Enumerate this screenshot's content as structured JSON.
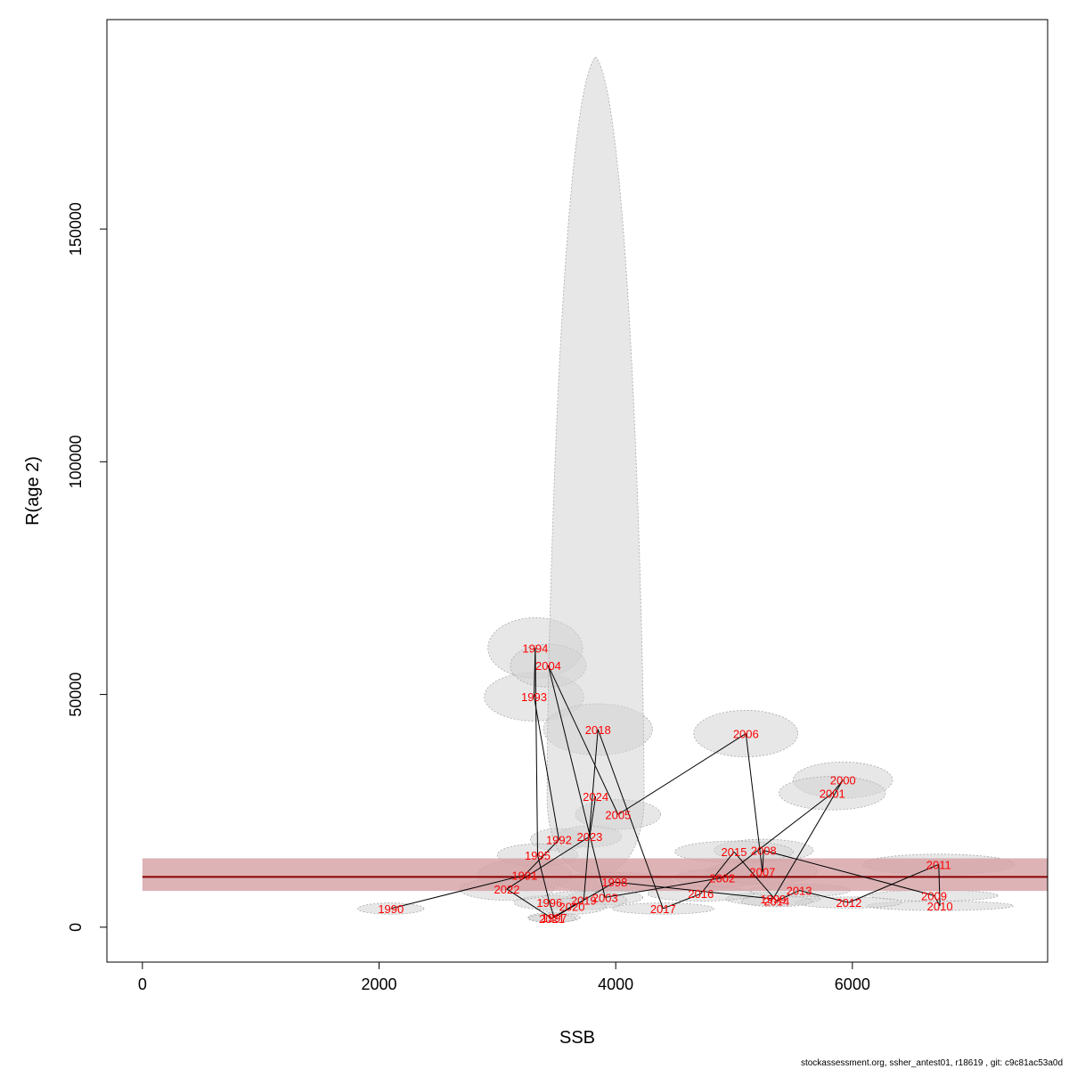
{
  "chart_data": {
    "type": "scatter",
    "title": "",
    "xlabel": "SSB",
    "ylabel": "R(age 2)",
    "xlim": [
      -300,
      7650
    ],
    "ylim": [
      -7500,
      195000
    ],
    "x_ticks": [
      0,
      2000,
      4000,
      6000
    ],
    "y_ticks": [
      0,
      50000,
      100000,
      150000
    ],
    "grid": false,
    "legend": "none",
    "colors": {
      "label": "#ff0000",
      "path": "#000000",
      "ellipse_fill": "#d3d3d3",
      "ellipse_stroke": "#a9a9a9",
      "reference_line": "#8b0000",
      "reference_band": "#d4a0a4"
    },
    "reference_line": {
      "y": 10800,
      "band": [
        7800,
        14800
      ],
      "x_from": 0
    },
    "points": [
      {
        "year": "1990",
        "ssb": 2100,
        "r": 4000,
        "sd_ssb": 280,
        "sd_r": 1200
      },
      {
        "year": "1991",
        "ssb": 3230,
        "r": 11200,
        "sd_ssb": 400,
        "sd_r": 3400
      },
      {
        "year": "1992",
        "ssb": 3520,
        "r": 18800,
        "sd_ssb": 240,
        "sd_r": 2400
      },
      {
        "year": "1993",
        "ssb": 3310,
        "r": 49500,
        "sd_ssb": 420,
        "sd_r": 5200
      },
      {
        "year": "1994",
        "ssb": 3320,
        "r": 60000,
        "sd_ssb": 400,
        "sd_r": 6500
      },
      {
        "year": "1995",
        "ssb": 3340,
        "r": 15500,
        "sd_ssb": 340,
        "sd_r": 2400
      },
      {
        "year": "1996",
        "ssb": 3440,
        "r": 5300,
        "sd_ssb": 300,
        "sd_r": 1500
      },
      {
        "year": "1997",
        "ssb": 3480,
        "r": 2100,
        "sd_ssb": 220,
        "sd_r": 1000
      },
      {
        "year": "1998",
        "ssb": 3990,
        "r": 9700,
        "sd_ssb": 500,
        "sd_r": 2100
      },
      {
        "year": "1999",
        "ssb": 5330,
        "r": 6100,
        "sd_ssb": 400,
        "sd_r": 1400
      },
      {
        "year": "2000",
        "ssb": 5920,
        "r": 31600,
        "sd_ssb": 420,
        "sd_r": 3900
      },
      {
        "year": "2001",
        "ssb": 5830,
        "r": 28800,
        "sd_ssb": 450,
        "sd_r": 3600
      },
      {
        "year": "2002",
        "ssb": 4900,
        "r": 10600,
        "sd_ssb": 400,
        "sd_r": 2000
      },
      {
        "year": "2003",
        "ssb": 3910,
        "r": 6400,
        "sd_ssb": 320,
        "sd_r": 1600
      },
      {
        "year": "2004",
        "ssb": 3430,
        "r": 56200,
        "sd_ssb": 320,
        "sd_r": 4600
      },
      {
        "year": "2005",
        "ssb": 4020,
        "r": 24200,
        "sd_ssb": 360,
        "sd_r": 3200
      },
      {
        "year": "2006",
        "ssb": 5100,
        "r": 41600,
        "sd_ssb": 440,
        "sd_r": 5000
      },
      {
        "year": "2007",
        "ssb": 5240,
        "r": 11900,
        "sd_ssb": 470,
        "sd_r": 2600
      },
      {
        "year": "2008",
        "ssb": 5250,
        "r": 16500,
        "sd_ssb": 420,
        "sd_r": 2400
      },
      {
        "year": "2009",
        "ssb": 6690,
        "r": 6800,
        "sd_ssb": 540,
        "sd_r": 1200
      },
      {
        "year": "2010",
        "ssb": 6740,
        "r": 4600,
        "sd_ssb": 620,
        "sd_r": 1000
      },
      {
        "year": "2011",
        "ssb": 6730,
        "r": 13500,
        "sd_ssb": 640,
        "sd_r": 2200
      },
      {
        "year": "2012",
        "ssb": 5970,
        "r": 5300,
        "sd_ssb": 450,
        "sd_r": 1200
      },
      {
        "year": "2013",
        "ssb": 5550,
        "r": 7900,
        "sd_ssb": 430,
        "sd_r": 1400
      },
      {
        "year": "2014",
        "ssb": 5360,
        "r": 5600,
        "sd_ssb": 300,
        "sd_r": 1200
      },
      {
        "year": "2015",
        "ssb": 5000,
        "r": 16200,
        "sd_ssb": 500,
        "sd_r": 2300
      },
      {
        "year": "2016",
        "ssb": 4720,
        "r": 7200,
        "sd_ssb": 450,
        "sd_r": 1600
      },
      {
        "year": "2017",
        "ssb": 4400,
        "r": 4000,
        "sd_ssb": 430,
        "sd_r": 1200
      },
      {
        "year": "2018",
        "ssb": 3850,
        "r": 42500,
        "sd_ssb": 460,
        "sd_r": 5500
      },
      {
        "year": "2019",
        "ssb": 3730,
        "r": 5800,
        "sd_ssb": 360,
        "sd_r": 2000
      },
      {
        "year": "2020",
        "ssb": 3630,
        "r": 4500,
        "sd_ssb": 290,
        "sd_r": 1700
      },
      {
        "year": "2021",
        "ssb": 3460,
        "r": 1900,
        "sd_ssb": 200,
        "sd_r": 900
      },
      {
        "year": "2022",
        "ssb": 3080,
        "r": 8200,
        "sd_ssb": 400,
        "sd_r": 2400
      },
      {
        "year": "2023",
        "ssb": 3780,
        "r": 19500,
        "sd_ssb": 270,
        "sd_r": 2300
      },
      {
        "year": "2024",
        "ssb": 3830,
        "r": 28100,
        "sd_ssb": 410,
        "sd_r": 17000,
        "shape": "teardrop",
        "peak_r": 187000
      }
    ]
  },
  "footer": {
    "credit": "stockassessment.org, ssher_antest01, r18619 , git: c9c81ac53a0d"
  }
}
